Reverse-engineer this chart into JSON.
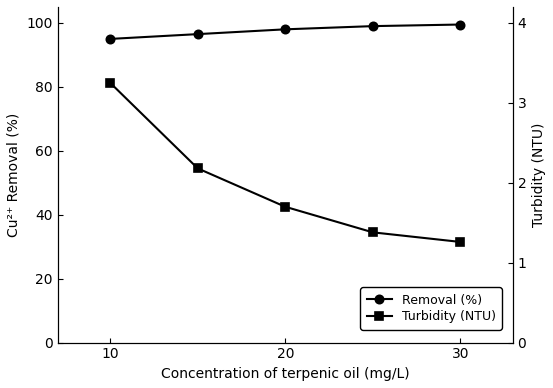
{
  "x": [
    10,
    15,
    20,
    25,
    30
  ],
  "removal": [
    95.0,
    96.5,
    98.0,
    99.0,
    99.5
  ],
  "turbidity": [
    3.25,
    2.18,
    1.7,
    1.38,
    1.26
  ],
  "xlabel": "Concentration of terpenic oil (mg/L)",
  "ylabel_left": "Cu²⁺ Removal (%)",
  "ylabel_right": "Turbidity (NTU)",
  "legend_removal": "Removal (%)",
  "legend_turbidity": "Turbidity (NTU)",
  "xlim": [
    7,
    33
  ],
  "ylim_left": [
    0,
    105
  ],
  "ylim_right": [
    0,
    4.2
  ],
  "xticks": [
    10,
    20,
    30
  ],
  "yticks_left": [
    0,
    20,
    40,
    60,
    80,
    100
  ],
  "yticks_right": [
    0,
    1,
    2,
    3,
    4
  ],
  "line_color": "black",
  "marker_removal": "o",
  "marker_turbidity": "s",
  "markersize": 6,
  "linewidth": 1.5,
  "font_size": 10,
  "tick_font_size": 10,
  "legend_font_size": 9
}
